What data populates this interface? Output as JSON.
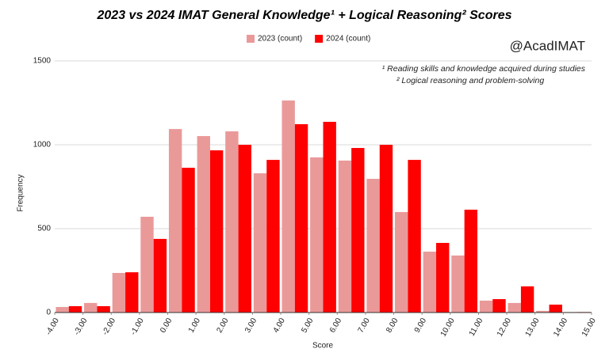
{
  "chart_data": {
    "type": "histogram",
    "title": "2023 vs 2024 IMAT General Knowledge¹ + Logical Reasoning² Scores",
    "x_label": "Score",
    "y_label": "Frequency",
    "annotations": [
      "@AcadIMAT",
      "¹ Reading skills and knowledge acquired during studies",
      "² Logical reasoning and problem-solving"
    ],
    "bins": [
      -4,
      -3,
      -2,
      -1,
      0,
      1,
      2,
      3,
      4,
      5,
      6,
      7,
      8,
      9,
      10,
      11,
      12,
      13,
      14,
      15
    ],
    "series": [
      {
        "name": "2023 (count)",
        "color": "#ea9999",
        "values": [
          33,
          57,
          236,
          571,
          1094,
          1052,
          1080,
          830,
          1264,
          925,
          906,
          797,
          599,
          363,
          340,
          71,
          57,
          10,
          3
        ]
      },
      {
        "name": "2024 (count)",
        "color": "#ff0000",
        "values": [
          38,
          38,
          240,
          439,
          863,
          967,
          1000,
          910,
          1123,
          1137,
          981,
          1000,
          910,
          415,
          613,
          80,
          156,
          47,
          3
        ]
      }
    ],
    "xlim": [
      -4,
      15
    ],
    "xticks": [
      {
        "value": -4,
        "label": "-4.00"
      },
      {
        "value": -3,
        "label": "-3.00"
      },
      {
        "value": -2,
        "label": "-2.00"
      },
      {
        "value": -1,
        "label": "-1.00"
      },
      {
        "value": 0,
        "label": "0.00"
      },
      {
        "value": 1,
        "label": "1.00"
      },
      {
        "value": 2,
        "label": "2.00"
      },
      {
        "value": 3,
        "label": "3.00"
      },
      {
        "value": 4,
        "label": "4.00"
      },
      {
        "value": 5,
        "label": "5.00"
      },
      {
        "value": 6,
        "label": "6.00"
      },
      {
        "value": 7,
        "label": "7.00"
      },
      {
        "value": 8,
        "label": "8.00"
      },
      {
        "value": 9,
        "label": "9.00"
      },
      {
        "value": 10,
        "label": "10.00"
      },
      {
        "value": 11,
        "label": "11.00"
      },
      {
        "value": 12,
        "label": "12.00"
      },
      {
        "value": 13,
        "label": "13.00"
      },
      {
        "value": 14,
        "label": "14.00"
      },
      {
        "value": 15,
        "label": "15.00"
      }
    ],
    "ylim": [
      0,
      1500
    ],
    "yticks": [
      0,
      500,
      1000,
      1500
    ],
    "grid": true,
    "legend": "top"
  }
}
